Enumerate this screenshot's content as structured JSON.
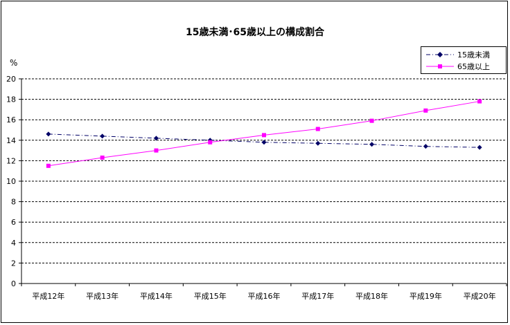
{
  "chart_data": {
    "type": "line",
    "title": "15歳未満･65歳以上の構成割合",
    "y_unit": "%",
    "categories": [
      "平成12年",
      "平成13年",
      "平成14年",
      "平成15年",
      "平成16年",
      "平成17年",
      "平成18年",
      "平成19年",
      "平成20年"
    ],
    "ylim": [
      0,
      20
    ],
    "yticks": [
      "0",
      "2",
      "4",
      "6",
      "8",
      "10",
      "12",
      "14",
      "16",
      "18",
      "20"
    ],
    "grid": true,
    "legend_position": "top-right",
    "series": [
      {
        "name": "15歳未満",
        "values": [
          14.6,
          14.4,
          14.2,
          14.0,
          13.8,
          13.7,
          13.6,
          13.4,
          13.3
        ],
        "color": "#000066",
        "marker": "diamond",
        "line_style": "dash-dot"
      },
      {
        "name": "65歳以上",
        "values": [
          11.5,
          12.3,
          13.0,
          13.8,
          14.5,
          15.1,
          15.9,
          16.9,
          17.8
        ],
        "color": "#ff00ff",
        "marker": "square",
        "line_style": "solid"
      }
    ]
  }
}
